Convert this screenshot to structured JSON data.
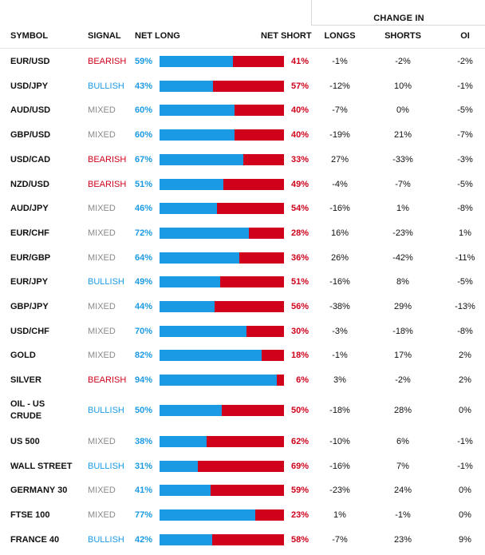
{
  "colors": {
    "bullish": "#1b9ae4",
    "bearish": "#d0021b",
    "mixed": "#8a8a8a",
    "long": "#1b9ae4",
    "short": "#d0021b"
  },
  "header": {
    "change_in": "CHANGE IN",
    "symbol": "SYMBOL",
    "signal": "SIGNAL",
    "net_long": "NET LONG",
    "net_short": "NET SHORT",
    "longs": "LONGS",
    "shorts": "SHORTS",
    "oi": "OI"
  },
  "rows": [
    {
      "symbol": "EUR/USD",
      "signal": "BEARISH",
      "net_long": "59%",
      "net_short": "41%",
      "long_pct": 59,
      "longs": "-1%",
      "shorts": "-2%",
      "oi": "-2%"
    },
    {
      "symbol": "USD/JPY",
      "signal": "BULLISH",
      "net_long": "43%",
      "net_short": "57%",
      "long_pct": 43,
      "longs": "-12%",
      "shorts": "10%",
      "oi": "-1%"
    },
    {
      "symbol": "AUD/USD",
      "signal": "MIXED",
      "net_long": "60%",
      "net_short": "40%",
      "long_pct": 60,
      "longs": "-7%",
      "shorts": "0%",
      "oi": "-5%"
    },
    {
      "symbol": "GBP/USD",
      "signal": "MIXED",
      "net_long": "60%",
      "net_short": "40%",
      "long_pct": 60,
      "longs": "-19%",
      "shorts": "21%",
      "oi": "-7%"
    },
    {
      "symbol": "USD/CAD",
      "signal": "BEARISH",
      "net_long": "67%",
      "net_short": "33%",
      "long_pct": 67,
      "longs": "27%",
      "shorts": "-33%",
      "oi": "-3%"
    },
    {
      "symbol": "NZD/USD",
      "signal": "BEARISH",
      "net_long": "51%",
      "net_short": "49%",
      "long_pct": 51,
      "longs": "-4%",
      "shorts": "-7%",
      "oi": "-5%"
    },
    {
      "symbol": "AUD/JPY",
      "signal": "MIXED",
      "net_long": "46%",
      "net_short": "54%",
      "long_pct": 46,
      "longs": "-16%",
      "shorts": "1%",
      "oi": "-8%"
    },
    {
      "symbol": "EUR/CHF",
      "signal": "MIXED",
      "net_long": "72%",
      "net_short": "28%",
      "long_pct": 72,
      "longs": "16%",
      "shorts": "-23%",
      "oi": "1%"
    },
    {
      "symbol": "EUR/GBP",
      "signal": "MIXED",
      "net_long": "64%",
      "net_short": "36%",
      "long_pct": 64,
      "longs": "26%",
      "shorts": "-42%",
      "oi": "-11%"
    },
    {
      "symbol": "EUR/JPY",
      "signal": "BULLISH",
      "net_long": "49%",
      "net_short": "51%",
      "long_pct": 49,
      "longs": "-16%",
      "shorts": "8%",
      "oi": "-5%"
    },
    {
      "symbol": "GBP/JPY",
      "signal": "MIXED",
      "net_long": "44%",
      "net_short": "56%",
      "long_pct": 44,
      "longs": "-38%",
      "shorts": "29%",
      "oi": "-13%"
    },
    {
      "symbol": "USD/CHF",
      "signal": "MIXED",
      "net_long": "70%",
      "net_short": "30%",
      "long_pct": 70,
      "longs": "-3%",
      "shorts": "-18%",
      "oi": "-8%"
    },
    {
      "symbol": "GOLD",
      "signal": "MIXED",
      "net_long": "82%",
      "net_short": "18%",
      "long_pct": 82,
      "longs": "-1%",
      "shorts": "17%",
      "oi": "2%"
    },
    {
      "symbol": "SILVER",
      "signal": "BEARISH",
      "net_long": "94%",
      "net_short": "6%",
      "long_pct": 94,
      "longs": "3%",
      "shorts": "-2%",
      "oi": "2%"
    },
    {
      "symbol": "OIL - US CRUDE",
      "symbol_line1": "OIL - US",
      "symbol_line2": "CRUDE",
      "signal": "BULLISH",
      "net_long": "50%",
      "net_short": "50%",
      "long_pct": 50,
      "longs": "-18%",
      "shorts": "28%",
      "oi": "0%"
    },
    {
      "symbol": "US 500",
      "signal": "MIXED",
      "net_long": "38%",
      "net_short": "62%",
      "long_pct": 38,
      "longs": "-10%",
      "shorts": "6%",
      "oi": "-1%"
    },
    {
      "symbol": "WALL STREET",
      "signal": "BULLISH",
      "net_long": "31%",
      "net_short": "69%",
      "long_pct": 31,
      "longs": "-16%",
      "shorts": "7%",
      "oi": "-1%"
    },
    {
      "symbol": "GERMANY 30",
      "signal": "MIXED",
      "net_long": "41%",
      "net_short": "59%",
      "long_pct": 41,
      "longs": "-23%",
      "shorts": "24%",
      "oi": "0%"
    },
    {
      "symbol": "FTSE 100",
      "signal": "MIXED",
      "net_long": "77%",
      "net_short": "23%",
      "long_pct": 77,
      "longs": "1%",
      "shorts": "-1%",
      "oi": "0%"
    },
    {
      "symbol": "FRANCE 40",
      "signal": "BULLISH",
      "net_long": "42%",
      "net_short": "58%",
      "long_pct": 42,
      "longs": "-7%",
      "shorts": "23%",
      "oi": "9%"
    }
  ]
}
